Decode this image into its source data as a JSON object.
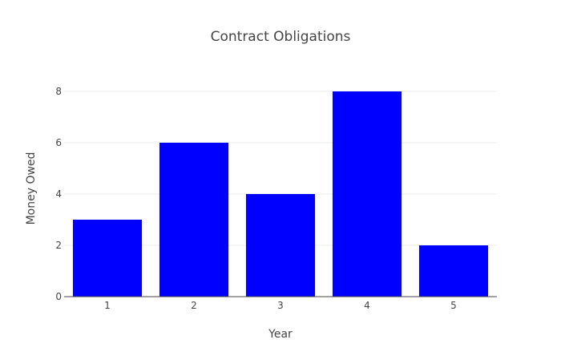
{
  "chart_data": {
    "type": "bar",
    "title": "Contract Obligations",
    "xlabel": "Year",
    "ylabel": "Money Owed",
    "categories": [
      "1",
      "2",
      "3",
      "4",
      "5"
    ],
    "values": [
      3,
      6,
      4,
      8,
      2
    ],
    "ylim": [
      0,
      9
    ],
    "yticks": [
      0,
      2,
      4,
      6,
      8
    ],
    "grid": true,
    "bar_color": "#0000ff"
  }
}
